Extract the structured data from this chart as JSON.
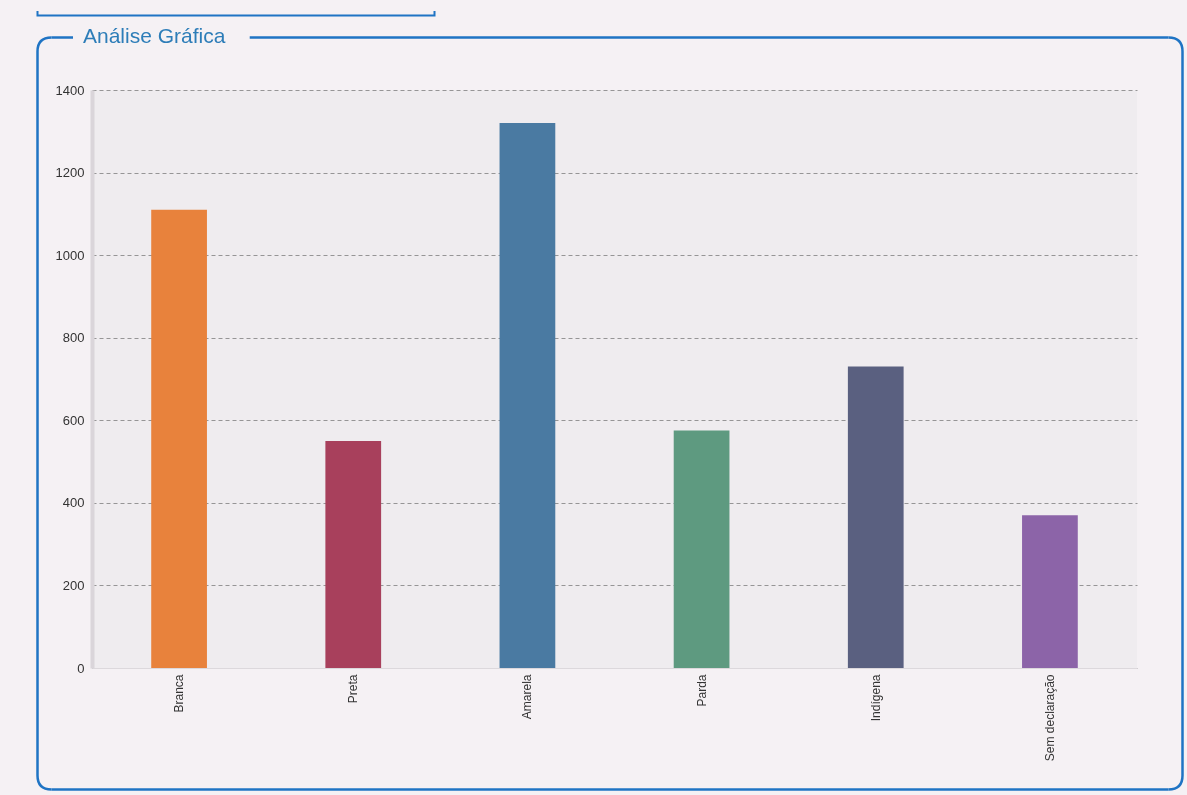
{
  "chart_data": {
    "type": "bar",
    "title": "Análise Gráfica",
    "categories": [
      "Branca",
      "Preta",
      "Amarela",
      "Parda",
      "Indígena",
      "Sem declaração"
    ],
    "values": [
      1110,
      550,
      1320,
      575,
      730,
      370
    ],
    "colors": [
      "#e8823c",
      "#a8405c",
      "#4a7aa2",
      "#5e9a80",
      "#5a6080",
      "#8c64a8"
    ],
    "ylim": [
      0,
      1400
    ],
    "yticks": [
      0,
      200,
      400,
      600,
      800,
      1000,
      1200,
      1400
    ],
    "grid": "y"
  }
}
